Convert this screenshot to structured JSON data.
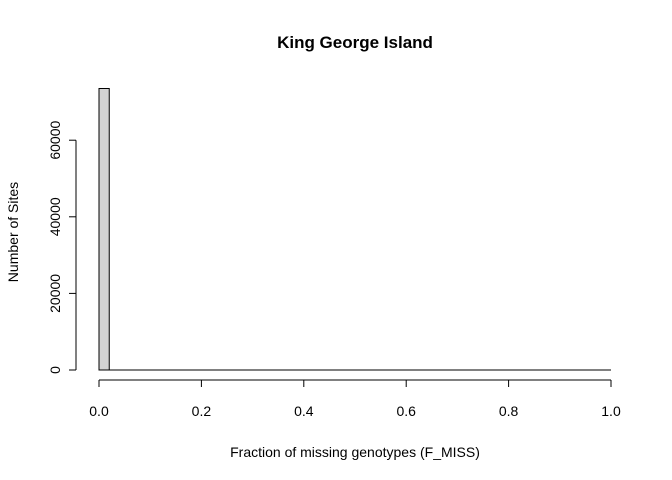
{
  "chart_data": {
    "type": "bar",
    "title": "King George Island",
    "xlabel": "Fraction of missing genotypes (F_MISS)",
    "ylabel": "Number of Sites",
    "xlim": [
      0,
      1
    ],
    "ylim": [
      0,
      73500
    ],
    "x_ticks": [
      "0.0",
      "0.2",
      "0.4",
      "0.6",
      "0.8",
      "1.0"
    ],
    "y_ticks": [
      "0",
      "20000",
      "40000",
      "60000"
    ],
    "bin_width": 0.02,
    "bins": [
      {
        "x0": 0.0,
        "x1": 0.02,
        "count": 73500
      },
      {
        "x0": 0.02,
        "x1": 1.0,
        "count": 0
      }
    ],
    "bar_fill": "#d3d3d3",
    "bar_stroke": "#000000",
    "grid": false,
    "legend": "none"
  }
}
